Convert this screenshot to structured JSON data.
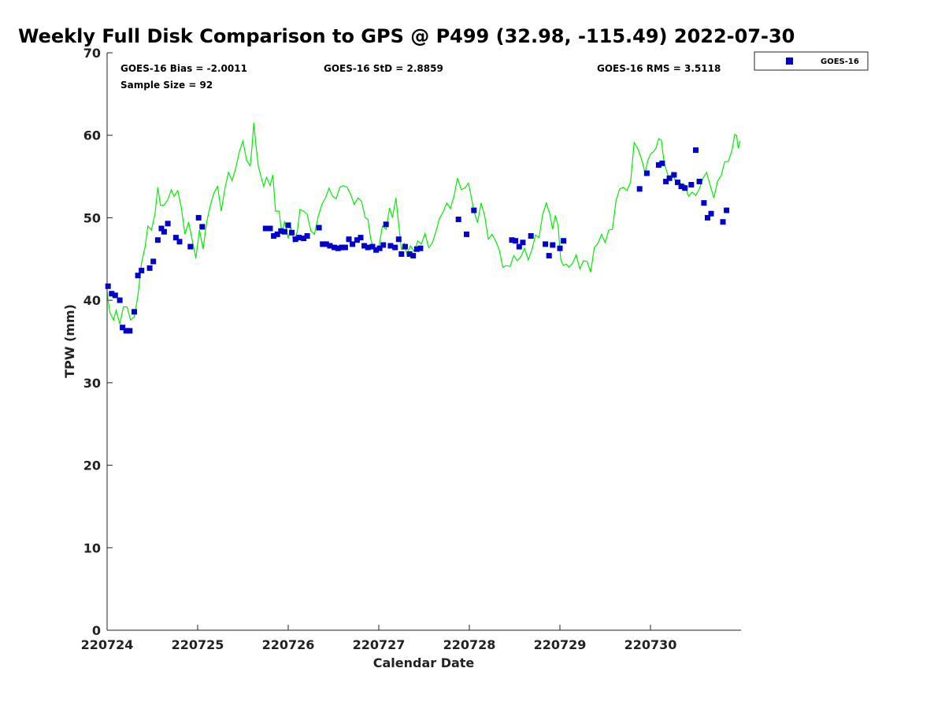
{
  "chart_data": {
    "type": "scatter",
    "title": "Weekly Full Disk Comparison to GPS @ P499 (32.98, -115.49) 2022-07-30",
    "xlabel": "Calendar Date",
    "ylabel": "TPW (mm)",
    "xlim": [
      0,
      7
    ],
    "ylim": [
      0,
      70
    ],
    "x_tick_labels": [
      "220724",
      "220725",
      "220726",
      "220727",
      "220728",
      "220729",
      "220730"
    ],
    "y_ticks": [
      0,
      10,
      20,
      30,
      40,
      50,
      60,
      70
    ],
    "grid": false,
    "legend": {
      "position": "top-right-outside",
      "entries": [
        "GOES-16"
      ]
    },
    "stats": {
      "bias": "GOES-16 Bias = -2.0011",
      "std": "GOES-16 StD = 2.8859",
      "rms": "GOES-16 RMS = 3.5118",
      "sample": "Sample Size = 92"
    },
    "colors": {
      "goes": "#0000cc",
      "gps": "#00ee00"
    },
    "series": [
      {
        "name": "GOES-16",
        "marker": "square",
        "color": "#0000cc",
        "points": [
          [
            0.01,
            41.7
          ],
          [
            0.05,
            40.8
          ],
          [
            0.09,
            40.6
          ],
          [
            0.14,
            40.0
          ],
          [
            0.17,
            36.7
          ],
          [
            0.21,
            36.3
          ],
          [
            0.25,
            36.3
          ],
          [
            0.3,
            38.6
          ],
          [
            0.34,
            43.0
          ],
          [
            0.38,
            43.6
          ],
          [
            0.47,
            43.9
          ],
          [
            0.51,
            44.7
          ],
          [
            0.56,
            47.3
          ],
          [
            0.6,
            48.7
          ],
          [
            0.63,
            48.3
          ],
          [
            0.67,
            49.3
          ],
          [
            0.76,
            47.6
          ],
          [
            0.8,
            47.1
          ],
          [
            0.92,
            46.5
          ],
          [
            1.01,
            50.0
          ],
          [
            1.05,
            48.9
          ],
          [
            1.75,
            48.7
          ],
          [
            1.8,
            48.7
          ],
          [
            1.84,
            47.8
          ],
          [
            1.88,
            48.0
          ],
          [
            1.92,
            48.4
          ],
          [
            1.96,
            48.3
          ],
          [
            2.0,
            49.1
          ],
          [
            2.04,
            48.2
          ],
          [
            2.08,
            47.4
          ],
          [
            2.12,
            47.6
          ],
          [
            2.17,
            47.5
          ],
          [
            2.21,
            47.8
          ],
          [
            2.34,
            48.8
          ],
          [
            2.38,
            46.8
          ],
          [
            2.42,
            46.8
          ],
          [
            2.46,
            46.6
          ],
          [
            2.51,
            46.4
          ],
          [
            2.55,
            46.3
          ],
          [
            2.59,
            46.4
          ],
          [
            2.63,
            46.4
          ],
          [
            2.67,
            47.4
          ],
          [
            2.71,
            46.8
          ],
          [
            2.76,
            47.3
          ],
          [
            2.8,
            47.6
          ],
          [
            2.84,
            46.6
          ],
          [
            2.88,
            46.4
          ],
          [
            2.93,
            46.5
          ],
          [
            2.97,
            46.1
          ],
          [
            3.01,
            46.3
          ],
          [
            3.05,
            46.7
          ],
          [
            3.08,
            49.2
          ],
          [
            3.13,
            46.6
          ],
          [
            3.18,
            46.4
          ],
          [
            3.22,
            47.4
          ],
          [
            3.25,
            45.6
          ],
          [
            3.29,
            46.5
          ],
          [
            3.34,
            45.6
          ],
          [
            3.38,
            45.4
          ],
          [
            3.42,
            46.2
          ],
          [
            3.46,
            46.3
          ],
          [
            3.88,
            49.8
          ],
          [
            3.97,
            48.0
          ],
          [
            4.05,
            50.9
          ],
          [
            4.47,
            47.3
          ],
          [
            4.51,
            47.2
          ],
          [
            4.55,
            46.5
          ],
          [
            4.59,
            47.0
          ],
          [
            4.68,
            47.8
          ],
          [
            4.84,
            46.8
          ],
          [
            4.88,
            45.4
          ],
          [
            4.92,
            46.7
          ],
          [
            5.0,
            46.3
          ],
          [
            5.04,
            47.2
          ],
          [
            5.88,
            53.5
          ],
          [
            5.96,
            55.4
          ],
          [
            6.09,
            56.4
          ],
          [
            6.13,
            56.6
          ],
          [
            6.17,
            54.4
          ],
          [
            6.21,
            54.8
          ],
          [
            6.26,
            55.2
          ],
          [
            6.3,
            54.3
          ],
          [
            6.34,
            53.8
          ],
          [
            6.38,
            53.6
          ],
          [
            6.45,
            54.0
          ],
          [
            6.5,
            58.2
          ],
          [
            6.54,
            54.4
          ],
          [
            6.59,
            51.8
          ],
          [
            6.63,
            50.0
          ],
          [
            6.67,
            50.5
          ],
          [
            6.8,
            49.5
          ],
          [
            6.84,
            50.9
          ]
        ]
      },
      {
        "name": "GPS",
        "type": "line",
        "color": "#00ee00",
        "points": [
          [
            0.0,
            41.0
          ],
          [
            0.03,
            38.5
          ],
          [
            0.07,
            37.6
          ],
          [
            0.1,
            38.8
          ],
          [
            0.14,
            37.1
          ],
          [
            0.18,
            39.2
          ],
          [
            0.22,
            39.2
          ],
          [
            0.26,
            37.6
          ],
          [
            0.3,
            38.0
          ],
          [
            0.34,
            40.5
          ],
          [
            0.38,
            44.5
          ],
          [
            0.42,
            46.5
          ],
          [
            0.45,
            49.0
          ],
          [
            0.49,
            48.5
          ],
          [
            0.53,
            50.5
          ],
          [
            0.56,
            53.7
          ],
          [
            0.59,
            51.5
          ],
          [
            0.63,
            51.5
          ],
          [
            0.67,
            52.2
          ],
          [
            0.71,
            53.4
          ],
          [
            0.74,
            52.6
          ],
          [
            0.78,
            53.3
          ],
          [
            0.82,
            51.2
          ],
          [
            0.86,
            48.0
          ],
          [
            0.9,
            49.5
          ],
          [
            0.94,
            47.3
          ],
          [
            0.98,
            45.1
          ],
          [
            1.02,
            48.5
          ],
          [
            1.06,
            46.2
          ],
          [
            1.1,
            49.5
          ],
          [
            1.14,
            51.5
          ],
          [
            1.18,
            53.0
          ],
          [
            1.22,
            53.8
          ],
          [
            1.26,
            50.8
          ],
          [
            1.3,
            53.5
          ],
          [
            1.34,
            55.5
          ],
          [
            1.38,
            54.5
          ],
          [
            1.42,
            56.0
          ],
          [
            1.46,
            58.0
          ],
          [
            1.5,
            59.3
          ],
          [
            1.54,
            57.0
          ],
          [
            1.58,
            56.3
          ],
          [
            1.6,
            58.6
          ],
          [
            1.62,
            61.5
          ],
          [
            1.64,
            59.2
          ],
          [
            1.67,
            56.2
          ],
          [
            1.7,
            55.0
          ],
          [
            1.73,
            53.8
          ],
          [
            1.76,
            54.9
          ],
          [
            1.8,
            53.9
          ],
          [
            1.83,
            55.2
          ],
          [
            1.86,
            50.8
          ],
          [
            1.9,
            50.8
          ],
          [
            1.93,
            48.0
          ],
          [
            1.96,
            49.6
          ],
          [
            2.0,
            47.5
          ],
          [
            2.03,
            48.9
          ],
          [
            2.06,
            47.1
          ],
          [
            2.1,
            48.3
          ],
          [
            2.13,
            51.0
          ],
          [
            2.17,
            50.8
          ],
          [
            2.21,
            50.4
          ],
          [
            2.25,
            48.4
          ],
          [
            2.29,
            48.0
          ],
          [
            2.33,
            50.1
          ],
          [
            2.37,
            51.6
          ],
          [
            2.41,
            52.4
          ],
          [
            2.45,
            53.6
          ],
          [
            2.49,
            52.6
          ],
          [
            2.53,
            52.3
          ],
          [
            2.57,
            53.7
          ],
          [
            2.61,
            53.9
          ],
          [
            2.65,
            53.7
          ],
          [
            2.69,
            52.8
          ],
          [
            2.73,
            51.6
          ],
          [
            2.77,
            52.4
          ],
          [
            2.81,
            52.0
          ],
          [
            2.85,
            50.0
          ],
          [
            2.88,
            49.8
          ],
          [
            2.91,
            47.5
          ],
          [
            2.94,
            46.2
          ],
          [
            2.97,
            46.0
          ],
          [
            3.0,
            46.4
          ],
          [
            3.04,
            49.0
          ],
          [
            3.08,
            48.6
          ],
          [
            3.12,
            51.2
          ],
          [
            3.15,
            50.0
          ],
          [
            3.19,
            52.4
          ],
          [
            3.22,
            49.2
          ],
          [
            3.25,
            46.1
          ],
          [
            3.28,
            46.9
          ],
          [
            3.31,
            45.6
          ],
          [
            3.35,
            46.6
          ],
          [
            3.39,
            45.9
          ],
          [
            3.43,
            47.2
          ],
          [
            3.47,
            46.8
          ],
          [
            3.51,
            48.1
          ],
          [
            3.55,
            46.4
          ],
          [
            3.59,
            46.9
          ],
          [
            3.63,
            48.3
          ],
          [
            3.67,
            49.9
          ],
          [
            3.71,
            50.7
          ],
          [
            3.75,
            51.8
          ],
          [
            3.79,
            51.1
          ],
          [
            3.83,
            52.6
          ],
          [
            3.87,
            54.8
          ],
          [
            3.91,
            53.4
          ],
          [
            3.95,
            53.6
          ],
          [
            3.99,
            54.2
          ],
          [
            4.02,
            52.6
          ],
          [
            4.05,
            50.8
          ],
          [
            4.09,
            49.4
          ],
          [
            4.13,
            51.8
          ],
          [
            4.17,
            50.2
          ],
          [
            4.21,
            47.4
          ],
          [
            4.25,
            48.0
          ],
          [
            4.29,
            47.2
          ],
          [
            4.33,
            46.1
          ],
          [
            4.37,
            44.0
          ],
          [
            4.41,
            44.2
          ],
          [
            4.45,
            44.1
          ],
          [
            4.49,
            45.4
          ],
          [
            4.53,
            44.8
          ],
          [
            4.57,
            45.3
          ],
          [
            4.61,
            46.3
          ],
          [
            4.65,
            44.9
          ],
          [
            4.69,
            46.1
          ],
          [
            4.73,
            47.9
          ],
          [
            4.77,
            47.6
          ],
          [
            4.81,
            50.4
          ],
          [
            4.85,
            51.8
          ],
          [
            4.89,
            50.4
          ],
          [
            4.92,
            48.6
          ],
          [
            4.95,
            50.3
          ],
          [
            4.98,
            49.0
          ],
          [
            5.01,
            44.9
          ],
          [
            5.04,
            44.2
          ],
          [
            5.07,
            44.4
          ],
          [
            5.1,
            44.0
          ],
          [
            5.14,
            44.5
          ],
          [
            5.18,
            45.5
          ],
          [
            5.22,
            43.8
          ],
          [
            5.26,
            44.8
          ],
          [
            5.3,
            44.7
          ],
          [
            5.34,
            43.4
          ],
          [
            5.38,
            46.4
          ],
          [
            5.42,
            46.9
          ],
          [
            5.46,
            48.0
          ],
          [
            5.5,
            47.0
          ],
          [
            5.54,
            48.5
          ],
          [
            5.58,
            48.6
          ],
          [
            5.62,
            52.1
          ],
          [
            5.66,
            53.5
          ],
          [
            5.7,
            53.7
          ],
          [
            5.74,
            53.3
          ],
          [
            5.78,
            54.3
          ],
          [
            5.82,
            59.1
          ],
          [
            5.85,
            58.6
          ],
          [
            5.88,
            57.8
          ],
          [
            5.91,
            56.8
          ],
          [
            5.94,
            55.4
          ],
          [
            5.97,
            56.9
          ],
          [
            6.0,
            57.7
          ],
          [
            6.03,
            58.0
          ],
          [
            6.06,
            58.4
          ],
          [
            6.09,
            59.6
          ],
          [
            6.12,
            59.4
          ],
          [
            6.15,
            56.7
          ],
          [
            6.18,
            55.6
          ],
          [
            6.21,
            54.7
          ],
          [
            6.24,
            55.5
          ],
          [
            6.27,
            54.6
          ],
          [
            6.3,
            54.5
          ],
          [
            6.34,
            54.1
          ],
          [
            6.38,
            54.0
          ],
          [
            6.42,
            52.6
          ],
          [
            6.46,
            53.1
          ],
          [
            6.5,
            52.7
          ],
          [
            6.54,
            53.5
          ],
          [
            6.58,
            54.8
          ],
          [
            6.62,
            55.5
          ],
          [
            6.66,
            53.9
          ],
          [
            6.7,
            52.4
          ],
          [
            6.74,
            54.4
          ],
          [
            6.78,
            55.1
          ],
          [
            6.82,
            56.8
          ],
          [
            6.86,
            56.8
          ],
          [
            6.9,
            58.2
          ],
          [
            6.93,
            60.1
          ],
          [
            6.95,
            60.0
          ],
          [
            6.97,
            58.4
          ],
          [
            6.99,
            59.3
          ]
        ]
      }
    ]
  }
}
